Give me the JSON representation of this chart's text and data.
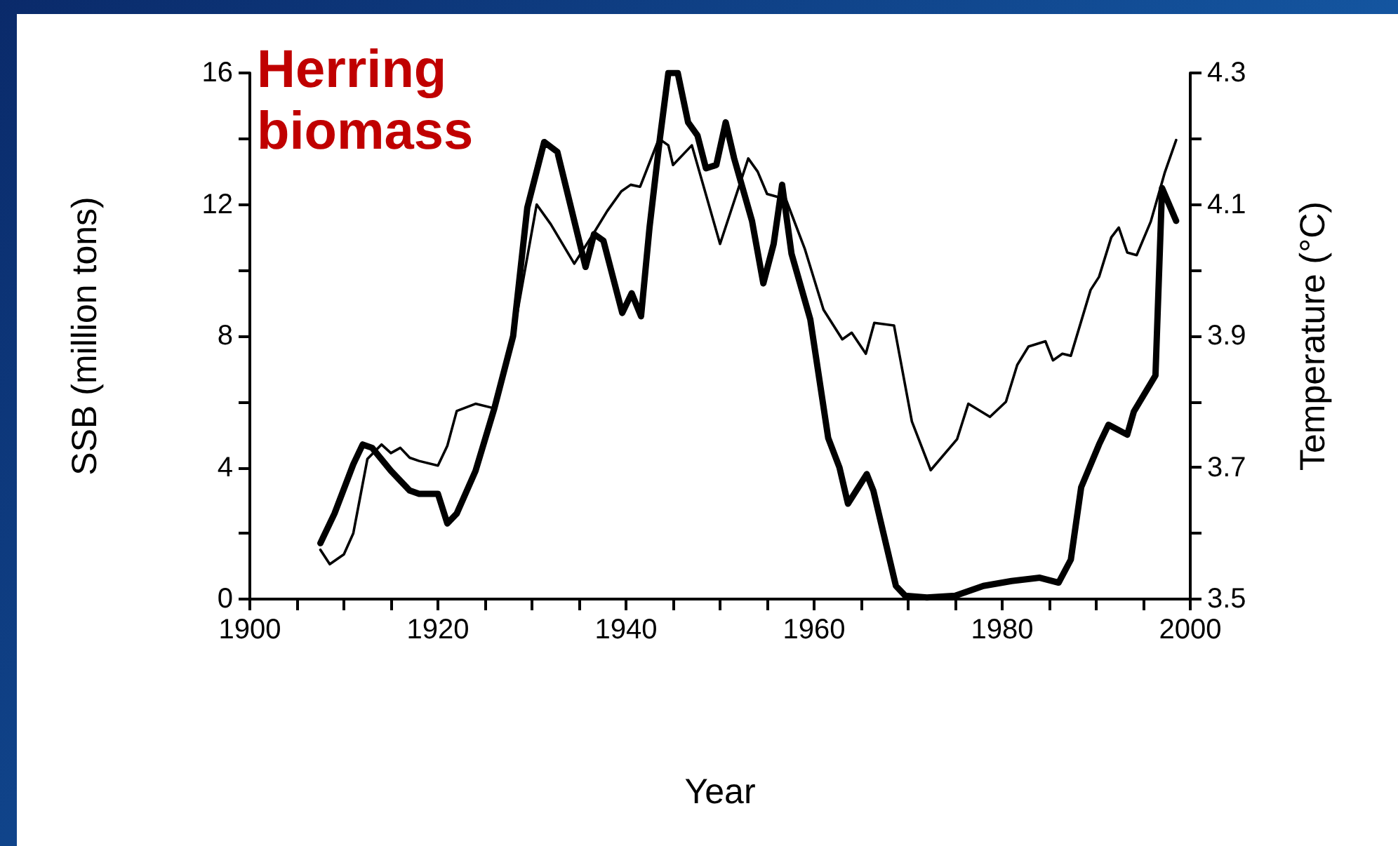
{
  "chart_data": {
    "type": "line",
    "xlabel": "Year",
    "ylabel": "SSB (million tons)",
    "y2label": "Temperature (°C)",
    "annotations": [
      "Herring biomass"
    ],
    "xlim": [
      1900,
      2000
    ],
    "xticks": [
      1900,
      {
        "value": 1905,
        "label": null
      },
      1920,
      {
        "value": 1910,
        "label": null
      },
      {
        "value": 1915,
        "label": null
      },
      {
        "value": 1925,
        "label": null
      },
      1940,
      {
        "value": 1930,
        "label": null
      },
      {
        "value": 1935,
        "label": null
      },
      {
        "value": 1945,
        "label": null
      },
      1960,
      {
        "value": 1950,
        "label": null
      },
      {
        "value": 1955,
        "label": null
      },
      {
        "value": 1965,
        "label": null
      },
      1980,
      {
        "value": 1970,
        "label": null
      },
      {
        "value": 1975,
        "label": null
      },
      {
        "value": 1985,
        "label": null
      },
      2000,
      {
        "value": 1990,
        "label": null
      },
      {
        "value": 1995,
        "label": null
      }
    ],
    "ylim": [
      0,
      16
    ],
    "yticks": [
      0,
      {
        "value": 2,
        "label": null
      },
      4,
      {
        "value": 6,
        "label": null
      },
      8,
      {
        "value": 10,
        "label": null
      },
      12,
      {
        "value": 14,
        "label": null
      },
      16
    ],
    "y2lim": [
      3.5,
      4.3
    ],
    "y2ticks": [
      3.5,
      {
        "value": 3.6,
        "label": null
      },
      3.7,
      {
        "value": 3.8,
        "label": null
      },
      3.9,
      {
        "value": 4.0,
        "label": null
      },
      4.1,
      {
        "value": 4.2,
        "label": null
      },
      4.3
    ],
    "grid": false,
    "marker": "none",
    "line_style": "solid",
    "series": [
      {
        "color": "#000000",
        "axis": "y",
        "x": [
          1907.5,
          1909,
          1911,
          1912,
          1913,
          1915,
          1917,
          1918,
          1920,
          1921,
          1922,
          1924,
          1926,
          1928,
          1929.5,
          1931.3,
          1932.7,
          1935.7,
          1936.6,
          1937.6,
          1939.6,
          1940.6,
          1941.6,
          1942.5,
          1943.6,
          1944.5,
          1945.5,
          1946.6,
          1947.6,
          1948.5,
          1949.6,
          1950.6,
          1951.5,
          1953.4,
          1954.6,
          1955.7,
          1956.6,
          1957.6,
          1959.6,
          1961.5,
          1962.7,
          1963.6,
          1965.6,
          1966.3,
          1968.7,
          1969.7,
          1972,
          1975,
          1978,
          1981,
          1984,
          1986,
          1987.3,
          1988.4,
          1990.3,
          1991.3,
          1993.3,
          1994,
          1996.3,
          1997,
          1998.5
        ],
        "values": [
          1.7,
          2.6,
          4.1,
          4.7,
          4.6,
          3.9,
          3.3,
          3.2,
          3.2,
          2.3,
          2.6,
          3.9,
          5.8,
          8.0,
          11.9,
          13.9,
          13.6,
          10.1,
          11.1,
          10.9,
          8.7,
          9.3,
          8.6,
          11.3,
          14.0,
          16.0,
          16.0,
          14.5,
          14.1,
          13.1,
          13.2,
          14.5,
          13.4,
          11.5,
          9.6,
          10.8,
          12.6,
          10.5,
          8.5,
          4.9,
          4.0,
          2.9,
          3.8,
          3.3,
          0.4,
          0.1,
          0.05,
          0.1,
          0.4,
          0.55,
          0.65,
          0.5,
          1.2,
          3.4,
          4.7,
          5.3,
          5.0,
          5.7,
          6.8,
          12.5,
          11.5
        ]
      },
      {
        "color": "#000000",
        "axis": "y2",
        "x": [
          1907.5,
          1908.5,
          1910,
          1911,
          1912.5,
          1914,
          1915,
          1916,
          1917,
          1918,
          1920,
          1921,
          1922,
          1924,
          1926,
          1928,
          1930.5,
          1932,
          1934.5,
          1936.5,
          1938,
          1939.5,
          1940.5,
          1941.5,
          1943.5,
          1944.5,
          1945,
          1947,
          1950,
          1953,
          1954,
          1955,
          1957,
          1959,
          1961,
          1963,
          1964,
          1965.5,
          1966.4,
          1968.5,
          1970.4,
          1972.4,
          1975.2,
          1976.4,
          1978.7,
          1980.4,
          1981.6,
          1982.8,
          1984.6,
          1985.4,
          1986.4,
          1987.3,
          1989.4,
          1990.3,
          1991.6,
          1992.4,
          1993.3,
          1994.3,
          1995.8,
          1997.3,
          1998.5
        ],
        "values": [
          3.575,
          3.553,
          3.568,
          3.6,
          3.713,
          3.735,
          3.722,
          3.73,
          3.715,
          3.71,
          3.703,
          3.733,
          3.786,
          3.797,
          3.79,
          3.9,
          4.1,
          4.07,
          4.01,
          4.055,
          4.09,
          4.12,
          4.13,
          4.127,
          4.2,
          4.19,
          4.16,
          4.19,
          4.04,
          4.17,
          4.15,
          4.116,
          4.108,
          4.033,
          3.94,
          3.895,
          3.905,
          3.873,
          3.92,
          3.916,
          3.77,
          3.696,
          3.743,
          3.797,
          3.777,
          3.8,
          3.856,
          3.884,
          3.892,
          3.863,
          3.873,
          3.87,
          3.97,
          3.99,
          4.05,
          4.065,
          4.027,
          4.023,
          4.074,
          4.149,
          4.198
        ]
      }
    ]
  }
}
